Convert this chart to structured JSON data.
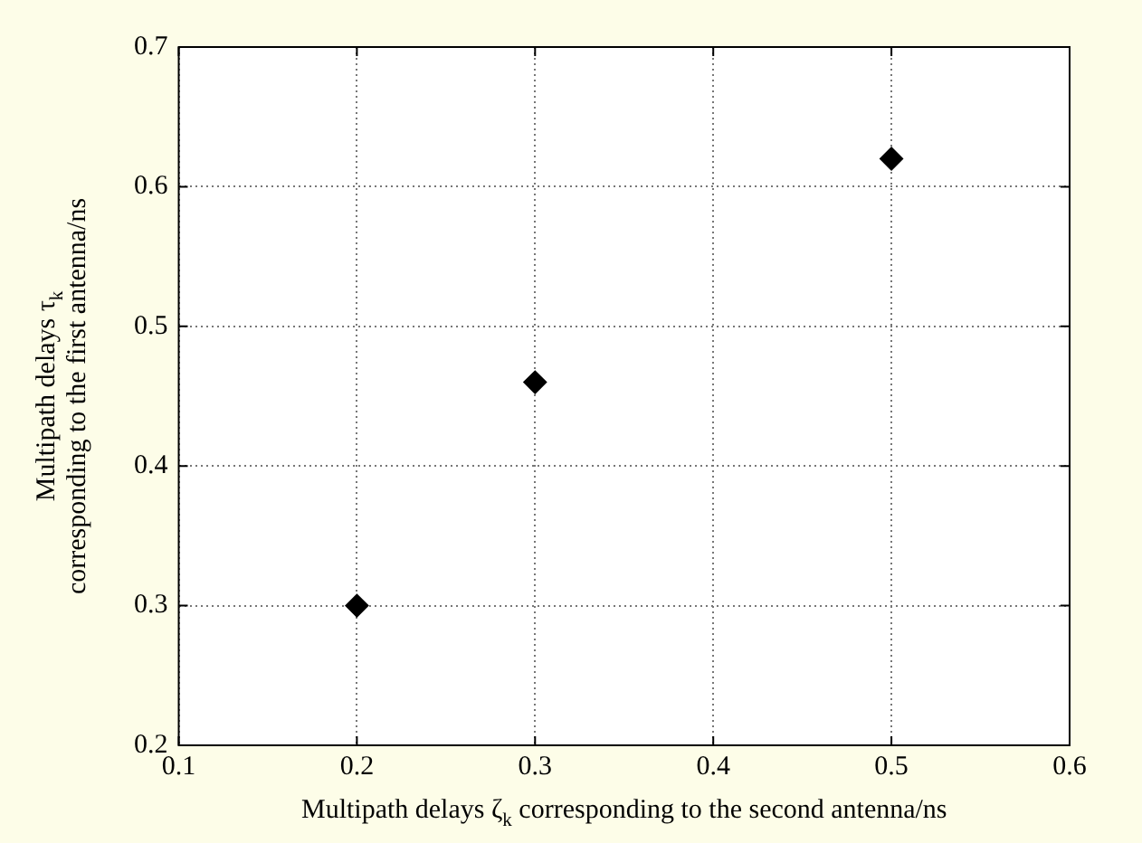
{
  "chart_data": {
    "type": "scatter",
    "xlabel": "Multipath delays ζ$_{k}$ corresponding to the second antenna/ns",
    "ylabel": "Multipath delays τ$_{k}$\ncorresponding to the first antenna/ns",
    "series": [
      {
        "color": "#000000",
        "x": [
          0.2,
          0.3,
          0.5
        ],
        "values": [
          0.3,
          0.46,
          0.62
        ]
      }
    ],
    "xlim": [
      0.1,
      0.6
    ],
    "xticks": [
      0.1,
      0.2,
      0.3,
      0.4,
      0.5,
      0.6
    ],
    "ylim": [
      0.2,
      0.7
    ],
    "yticks": [
      0.2,
      0.3,
      0.4,
      0.5,
      0.6,
      0.7
    ],
    "grid": true,
    "legend": false,
    "marker": "diamond"
  }
}
